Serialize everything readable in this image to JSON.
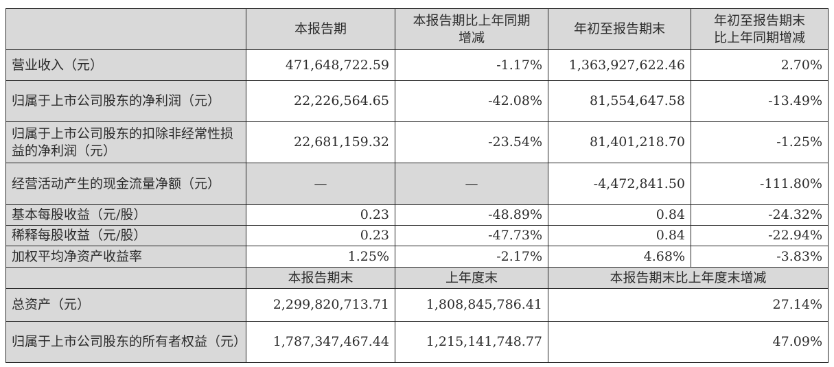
{
  "headers": [
    "",
    "本报告期",
    "本报告期比上年同期增减",
    "年初至报告期末",
    "年初至报告期末比上年同期增减"
  ],
  "header_lines": {
    "col3": [
      "本报告期比上年同期",
      "增减"
    ],
    "col5": [
      "年初至报告期末",
      "比上年同期增减"
    ]
  },
  "rows": [
    {
      "label": "营业收入（元）",
      "current": "471,648,722.59",
      "current_change": "-1.17%",
      "ytd": "1,363,927,622.46",
      "ytd_change": "2.70%"
    },
    {
      "label": "归属于上市公司股东的净利润（元）",
      "current": "22,226,564.65",
      "current_change": "-42.08%",
      "ytd": "81,554,647.58",
      "ytd_change": "-13.49%"
    },
    {
      "label": "归属于上市公司股东的扣除非经常性损益的净利润（元）",
      "current": "22,681,159.32",
      "current_change": "-23.54%",
      "ytd": "81,401,218.70",
      "ytd_change": "-1.25%"
    },
    {
      "label": "经营活动产生的现金流量净额（元）",
      "current": "—",
      "current_change": "—",
      "ytd": "-4,472,841.50",
      "ytd_change": "-111.80%"
    },
    {
      "label": "基本每股收益（元/股）",
      "current": "0.23",
      "current_change": "-48.89%",
      "ytd": "0.84",
      "ytd_change": "-24.32%"
    },
    {
      "label": "稀释每股收益（元/股）",
      "current": "0.23",
      "current_change": "-47.73%",
      "ytd": "0.84",
      "ytd_change": "-22.94%"
    },
    {
      "label": "加权平均净资产收益率",
      "current": "1.25%",
      "current_change": "-2.17%",
      "ytd": "4.68%",
      "ytd_change": "-3.83%"
    }
  ],
  "headers2": [
    "",
    "本报告期末",
    "上年度末",
    "本报告期末比上年度末增减"
  ],
  "rows2": [
    {
      "label": "总资产（元）",
      "period_end": "2,299,820,713.71",
      "last_year_end": "1,808,845,786.41",
      "change": "27.14%"
    },
    {
      "label": "归属于上市公司股东的所有者权益（元）",
      "period_end": "1,787,347,467.44",
      "last_year_end": "1,215,141,748.77",
      "change": "47.09%"
    }
  ],
  "colors": {
    "header_bg": "#d9d9d9",
    "border": "#222222"
  }
}
